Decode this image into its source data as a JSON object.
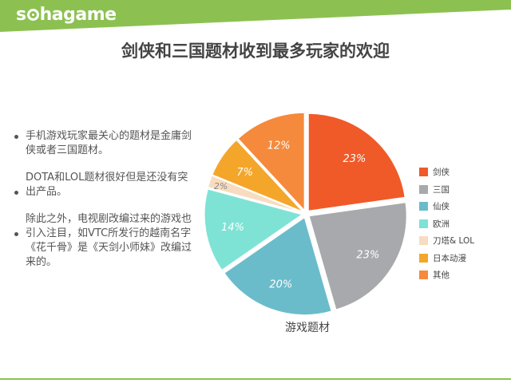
{
  "header": {
    "logo_text": "sohagame",
    "logo_part1": "s",
    "logo_part2": "hagame",
    "band_color": "#8cc152"
  },
  "title": "剑侠和三国题材收到最多玩家的欢迎",
  "bullets": [
    "手机游戏玩家最关心的题材是金庸剑侠或者三国题材。",
    "DOTA和LOL题材很好但是还没有突出产品。",
    "除此之外，电视剧改编过来的游戏也引入注目，如VTC所发行的越南名字《花千骨》是《天剑小师妹》改编过来的。"
  ],
  "chart_data": {
    "type": "pie",
    "title": "",
    "xlabel": "游戏题材",
    "legend_position": "right",
    "categories": [
      "剑侠",
      "三国",
      "仙侠",
      "欧洲",
      "刀塔& LOL",
      "日本动漫",
      "其他"
    ],
    "values": [
      23,
      23,
      20,
      14,
      2,
      7,
      12
    ],
    "labels": [
      "23%",
      "23%",
      "20%",
      "14%",
      "2%",
      "7%",
      "12%"
    ],
    "colors": [
      "#f05a28",
      "#a7a9ac",
      "#6bbccb",
      "#7ee3d5",
      "#f7dcc0",
      "#f4a62a",
      "#f58a3c"
    ]
  }
}
